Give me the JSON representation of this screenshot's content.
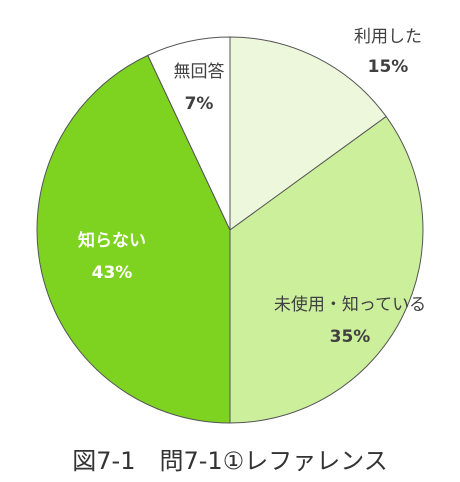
{
  "chart_data": {
    "type": "pie",
    "title": "",
    "slices": [
      {
        "label": "利用した",
        "value": 15,
        "value_text": "15%",
        "color": "#ecf7dc"
      },
      {
        "label": "未使用・知っている",
        "value": 35,
        "value_text": "35%",
        "color": "#ccef9c"
      },
      {
        "label": "知らない",
        "value": 43,
        "value_text": "43%",
        "color": "#7ed321"
      },
      {
        "label": "無回答",
        "value": 7,
        "value_text": "7%",
        "color": "#ffffff"
      }
    ],
    "start_angle_deg": 0,
    "direction": "clockwise"
  },
  "caption": "図7-1　問7-1①レファレンス"
}
